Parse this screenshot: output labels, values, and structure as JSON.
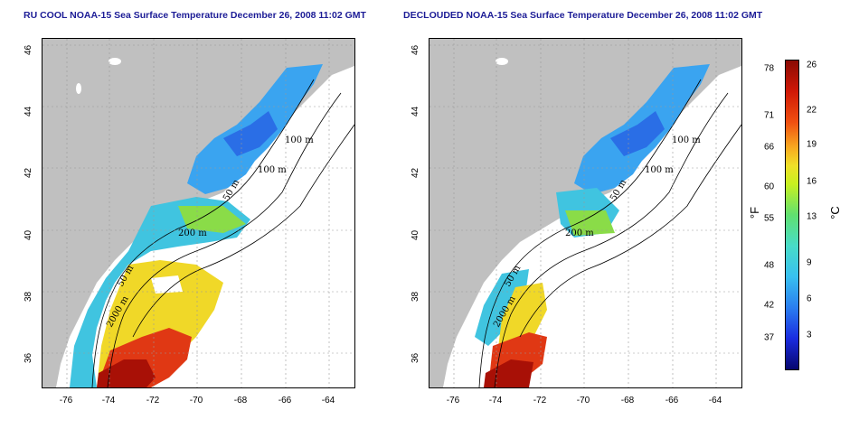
{
  "panels": [
    {
      "title": "RU COOL NOAA-15 Sea Surface Temperature December 26, 2008 11:02 GMT"
    },
    {
      "title": "DECLOUDED NOAA-15 Sea Surface Temperature December 26, 2008 11:02 GMT"
    }
  ],
  "axes": {
    "x_ticks": [
      "-76",
      "-74",
      "-72",
      "-70",
      "-68",
      "-66",
      "-64"
    ],
    "y_ticks": [
      "36",
      "38",
      "40",
      "42",
      "44",
      "46"
    ]
  },
  "contour_labels": [
    "100 m",
    "100 m",
    "50 m",
    "200 m",
    "50 m",
    "2000 m"
  ],
  "colorbar": {
    "fahrenheit_label": "°F",
    "celsius_label": "°C",
    "fahrenheit_ticks": [
      "78",
      "71",
      "66",
      "60",
      "55",
      "48",
      "42",
      "37"
    ],
    "celsius_ticks": [
      "26",
      "22",
      "19",
      "16",
      "13",
      "9",
      "6",
      "3"
    ],
    "colors": [
      "#06066e",
      "#1a2ce0",
      "#38c0f0",
      "#60e070",
      "#f0e028",
      "#f05010",
      "#8a0a04"
    ]
  }
}
